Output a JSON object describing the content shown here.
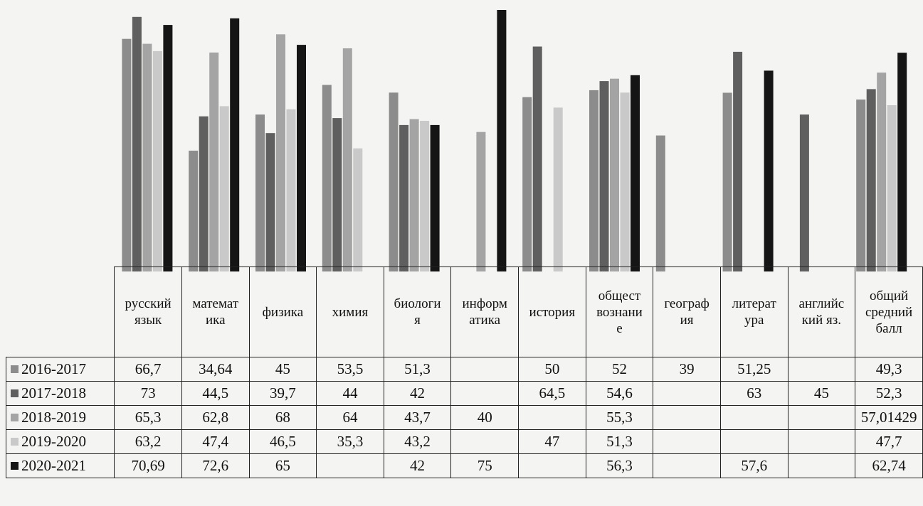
{
  "chart_data": {
    "type": "bar",
    "categories": [
      "русский язык",
      "математика",
      "физика",
      "химия",
      "биология",
      "информатика",
      "история",
      "обществознание",
      "география",
      "литература",
      "английский яз.",
      "общий средний балл"
    ],
    "category_labels": [
      "русский\nязык",
      "математ\nика",
      "физика",
      "химия",
      "биологи\nя",
      "информ\nатика",
      "история",
      "общест\nвознани\nе",
      "географ\nия",
      "литерат\nура",
      "английс\nкий яз.",
      "общий\nсредний\nбалл"
    ],
    "series": [
      {
        "name": "2016-2017",
        "color": "#8c8c8c",
        "values": [
          66.7,
          34.64,
          45,
          53.5,
          51.3,
          null,
          50,
          52,
          39,
          51.25,
          null,
          49.3
        ],
        "labels": [
          "66,7",
          "34,64",
          "45",
          "53,5",
          "51,3",
          "",
          "50",
          "52",
          "39",
          "51,25",
          "",
          "49,3"
        ]
      },
      {
        "name": "2017-2018",
        "color": "#5f5f5f",
        "values": [
          73,
          44.5,
          39.7,
          44,
          42,
          null,
          64.5,
          54.6,
          null,
          63,
          45,
          52.3
        ],
        "labels": [
          "73",
          "44,5",
          "39,7",
          "44",
          "42",
          "",
          "64,5",
          "54,6",
          "",
          "63",
          "45",
          "52,3"
        ]
      },
      {
        "name": "2018-2019",
        "color": "#a4a4a4",
        "values": [
          65.3,
          62.8,
          68,
          64,
          43.7,
          40,
          null,
          55.3,
          null,
          null,
          null,
          57.01429
        ],
        "labels": [
          "65,3",
          "62,8",
          "68",
          "64",
          "43,7",
          "40",
          "",
          "55,3",
          "",
          "",
          "",
          "57,01429"
        ]
      },
      {
        "name": "2019-2020",
        "color": "#c9c9c9",
        "values": [
          63.2,
          47.4,
          46.5,
          35.3,
          43.2,
          null,
          47,
          51.3,
          null,
          null,
          null,
          47.7
        ],
        "labels": [
          "63,2",
          "47,4",
          "46,5",
          "35,3",
          "43,2",
          "",
          "47",
          "51,3",
          "",
          "",
          "",
          "47,7"
        ]
      },
      {
        "name": "2020-2021",
        "color": "#151515",
        "values": [
          70.69,
          72.6,
          65,
          null,
          42,
          75,
          null,
          56.3,
          null,
          57.6,
          null,
          62.74
        ],
        "labels": [
          "70,69",
          "72,6",
          "65",
          "",
          "42",
          "75",
          "",
          "56,3",
          "",
          "57,6",
          "",
          "62,74"
        ]
      }
    ],
    "ylim": [
      0,
      75
    ],
    "grid": false,
    "legend": "table-left"
  }
}
